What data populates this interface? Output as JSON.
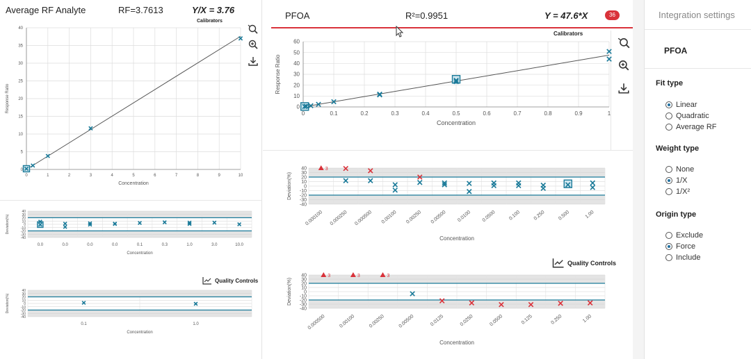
{
  "left": {
    "title": "Average RF Analyte",
    "rf": "RF=3.7613",
    "equation": "Y/X = 3.76",
    "calibrators_label": "Calibrators",
    "quality_controls_label": "Quality Controls"
  },
  "mid": {
    "title": "PFOA",
    "r2": "R²=0.9951",
    "equation": "Y = 47.6*X",
    "badge": "36",
    "calibrators_label": "Calibrators",
    "quality_controls_label": "Quality Controls"
  },
  "right": {
    "title": "Integration settings",
    "analyte": "PFOA",
    "fit_type_label": "Fit type",
    "fit_options": [
      "Linear",
      "Quadratic",
      "Average RF"
    ],
    "fit_selected": "Linear",
    "weight_type_label": "Weight type",
    "weight_options": [
      "None",
      "1/X",
      "1/X²"
    ],
    "weight_selected": "1/X",
    "origin_type_label": "Origin type",
    "origin_options": [
      "Exclude",
      "Force",
      "Include"
    ],
    "origin_selected": "Force"
  },
  "colors": {
    "accent": "#1f6fa0",
    "line": "#1a7a99",
    "outlier": "#d9323a",
    "band": "#e4e4e4",
    "grid": "#dddddd"
  },
  "chart_data": [
    {
      "id": "left_cal",
      "type": "scatter",
      "title": "Calibrators",
      "xlabel": "Concentration",
      "ylabel": "Response Ratio",
      "xlim": [
        0,
        10
      ],
      "ylim": [
        0,
        40
      ],
      "xticks": [
        0,
        1,
        2,
        3,
        4,
        5,
        6,
        7,
        8,
        9,
        10
      ],
      "yticks": [
        0,
        5,
        10,
        15,
        20,
        25,
        30,
        35,
        40
      ],
      "fit_line": [
        [
          0,
          0
        ],
        [
          10,
          37.6
        ]
      ],
      "points": [
        [
          0,
          0.2
        ],
        [
          0.3,
          1.1
        ],
        [
          1,
          3.8
        ],
        [
          3,
          11.6
        ],
        [
          10,
          37.0
        ]
      ],
      "highlight": [
        [
          0,
          0.2
        ]
      ]
    },
    {
      "id": "left_dev_cal",
      "type": "scatter",
      "xlabel": "Concentration",
      "ylabel": "Deviation(%)",
      "ylim": [
        -40,
        40
      ],
      "yticks": [
        40,
        30,
        20,
        10,
        0,
        -10,
        -20,
        -30,
        -40
      ],
      "band": [
        -20,
        20
      ],
      "categories": [
        "0.0",
        "0.0",
        "0.0",
        "0.0",
        "0.1",
        "0.3",
        "1.0",
        "3.0",
        "10.0"
      ],
      "points": [
        [
          0,
          8
        ],
        [
          0,
          -1
        ],
        [
          1,
          2
        ],
        [
          1,
          -8
        ],
        [
          2,
          3
        ],
        [
          2,
          -1
        ],
        [
          3,
          2
        ],
        [
          3,
          1
        ],
        [
          4,
          4
        ],
        [
          5,
          6
        ],
        [
          6,
          5
        ],
        [
          6,
          1
        ],
        [
          7,
          5
        ],
        [
          8,
          0
        ]
      ],
      "highlight": [
        [
          0,
          -1
        ]
      ]
    },
    {
      "id": "left_dev_qc",
      "type": "scatter",
      "title": "Quality Controls",
      "xlabel": "Concentration",
      "ylabel": "Deviation(%)",
      "ylim": [
        -40,
        40
      ],
      "yticks": [
        40,
        30,
        20,
        10,
        0,
        -10,
        -20,
        -30,
        -40
      ],
      "band": [
        -20,
        20
      ],
      "categories": [
        "0.1",
        "1.0"
      ],
      "points": [
        [
          0,
          2
        ],
        [
          1,
          -1
        ]
      ]
    },
    {
      "id": "mid_cal",
      "type": "scatter",
      "title": "Calibrators",
      "xlabel": "Concentration",
      "ylabel": "Response Ratio",
      "xlim": [
        0,
        1
      ],
      "ylim": [
        0,
        60
      ],
      "xticks": [
        0,
        0.1,
        0.2,
        0.3,
        0.4,
        0.5,
        0.6,
        0.7,
        0.8,
        0.9,
        1
      ],
      "xtick_labels": [
        "0",
        "0.1",
        "0.2",
        "0.3",
        "0.4",
        "0.5",
        "0.6",
        "0.7",
        "0.8",
        "0.9",
        "1"
      ],
      "yticks": [
        0,
        10,
        20,
        30,
        40,
        50,
        60
      ],
      "fit_line": [
        [
          0,
          0
        ],
        [
          1,
          47.6
        ]
      ],
      "points": [
        [
          0.005,
          0.4
        ],
        [
          0.01,
          0.6
        ],
        [
          0.025,
          1.1
        ],
        [
          0.05,
          2.4
        ],
        [
          0.1,
          4.8
        ],
        [
          0.25,
          11.7
        ],
        [
          0.25,
          11.1
        ],
        [
          0.5,
          24.5
        ],
        [
          0.5,
          23.2
        ],
        [
          1,
          51
        ],
        [
          1,
          44
        ]
      ],
      "highlight": [
        [
          0.5,
          25.4
        ],
        [
          0.005,
          0.4
        ]
      ]
    },
    {
      "id": "mid_dev_cal",
      "type": "scatter",
      "xlabel": "Concentration",
      "ylabel": "Deviation(%)",
      "ylim": [
        -40,
        40
      ],
      "yticks": [
        40,
        30,
        20,
        10,
        0,
        -10,
        -20,
        -30,
        -40
      ],
      "band": [
        -20,
        20
      ],
      "categories": [
        "0.000100",
        "0.000250",
        "0.000500",
        "0.00100",
        "0.00250",
        "0.00500",
        "0.0100",
        "0.0500",
        "0.100",
        "0.250",
        "0.500",
        "1.00"
      ],
      "points": [
        [
          1,
          12
        ],
        [
          2,
          12
        ],
        [
          3,
          3
        ],
        [
          3,
          -9
        ],
        [
          4,
          8
        ],
        [
          5,
          7
        ],
        [
          5,
          3
        ],
        [
          6,
          6
        ],
        [
          6,
          -12
        ],
        [
          7,
          7
        ],
        [
          7,
          1
        ],
        [
          8,
          7
        ],
        [
          8,
          1
        ],
        [
          9,
          2
        ],
        [
          9,
          -5
        ],
        [
          10,
          3
        ],
        [
          11,
          7
        ],
        [
          11,
          -3
        ]
      ],
      "outliers": [
        [
          0,
          40,
          "3"
        ],
        [
          1,
          39
        ],
        [
          2,
          34
        ],
        [
          4,
          20
        ]
      ],
      "highlight": [
        [
          10,
          5
        ]
      ]
    },
    {
      "id": "mid_dev_qc",
      "type": "scatter",
      "title": "Quality Controls",
      "xlabel": "Concentration",
      "ylabel": "Deviation(%)",
      "ylim": [
        -40,
        40
      ],
      "yticks": [
        40,
        30,
        20,
        10,
        0,
        -10,
        -20,
        -30,
        -40
      ],
      "band": [
        -20,
        20
      ],
      "categories": [
        "0.000500",
        "0.00100",
        "0.00250",
        "0.00500",
        "0.0125",
        "0.0250",
        "0.0500",
        "0.125",
        "0.250",
        "1.00"
      ],
      "points": [
        [
          3,
          -5
        ]
      ],
      "outliers": [
        [
          0,
          40,
          "3"
        ],
        [
          1,
          40,
          "3"
        ],
        [
          2,
          40,
          "3"
        ],
        [
          4,
          -22
        ],
        [
          5,
          -27
        ],
        [
          6,
          -31
        ],
        [
          7,
          -31
        ],
        [
          8,
          -28
        ],
        [
          9,
          -27
        ]
      ]
    }
  ]
}
